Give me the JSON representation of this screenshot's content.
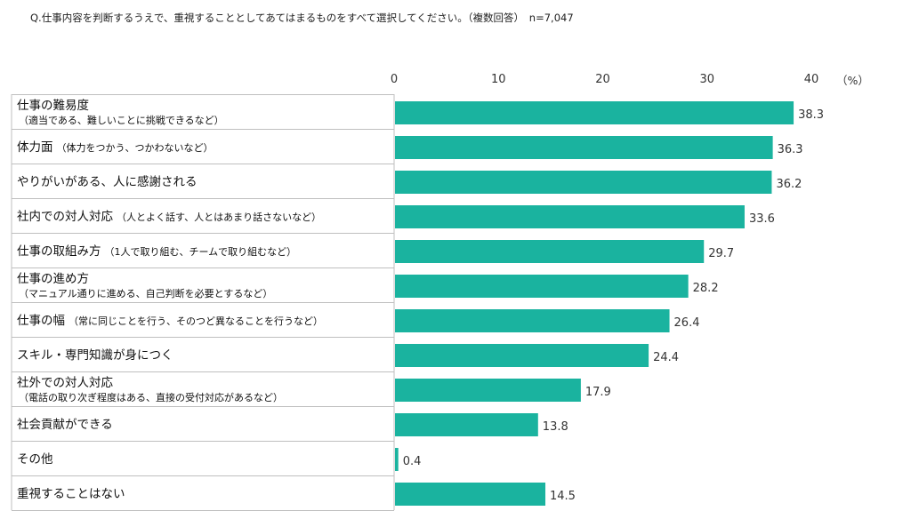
{
  "question": "Q.仕事内容を判断するうえで、重視することとしてあてはまるものをすべて選択してください。（複数回答）　n=7,047",
  "chart_data": {
    "type": "bar",
    "orientation": "horizontal",
    "unit": "（%）",
    "xlim": [
      0,
      40
    ],
    "ticks": [
      0,
      10,
      20,
      30,
      40
    ],
    "grid": false,
    "bar_color": "#1ab39f",
    "categories": [
      {
        "main": "仕事の難易度",
        "sub": "（適当である、難しいことに挑戦できるなど）",
        "sub_inline": false
      },
      {
        "main": "体力面",
        "sub": "（体力をつかう、つかわないなど）",
        "sub_inline": true
      },
      {
        "main": "やりがいがある、人に感謝される",
        "sub": "",
        "sub_inline": true
      },
      {
        "main": "社内での対人対応",
        "sub": "（人とよく話す、人とはあまり話さないなど）",
        "sub_inline": true
      },
      {
        "main": "仕事の取組み方",
        "sub": "（1人で取り組む、チームで取り組むなど）",
        "sub_inline": true
      },
      {
        "main": "仕事の進め方",
        "sub": "（マニュアル通りに進める、自己判断を必要とするなど）",
        "sub_inline": false
      },
      {
        "main": "仕事の幅",
        "sub": "（常に同じことを行う、そのつど異なることを行うなど）",
        "sub_inline": true
      },
      {
        "main": "スキル・専門知識が身につく",
        "sub": "",
        "sub_inline": true
      },
      {
        "main": "社外での対人対応",
        "sub": "（電話の取り次ぎ程度はある、直接の受付対応があるなど）",
        "sub_inline": false
      },
      {
        "main": "社会貢献ができる",
        "sub": "",
        "sub_inline": true
      },
      {
        "main": "その他",
        "sub": "",
        "sub_inline": true
      },
      {
        "main": "重視することはない",
        "sub": "",
        "sub_inline": true
      }
    ],
    "values": [
      38.3,
      36.3,
      36.2,
      33.6,
      29.7,
      28.2,
      26.4,
      24.4,
      17.9,
      13.8,
      0.4,
      14.5
    ]
  }
}
